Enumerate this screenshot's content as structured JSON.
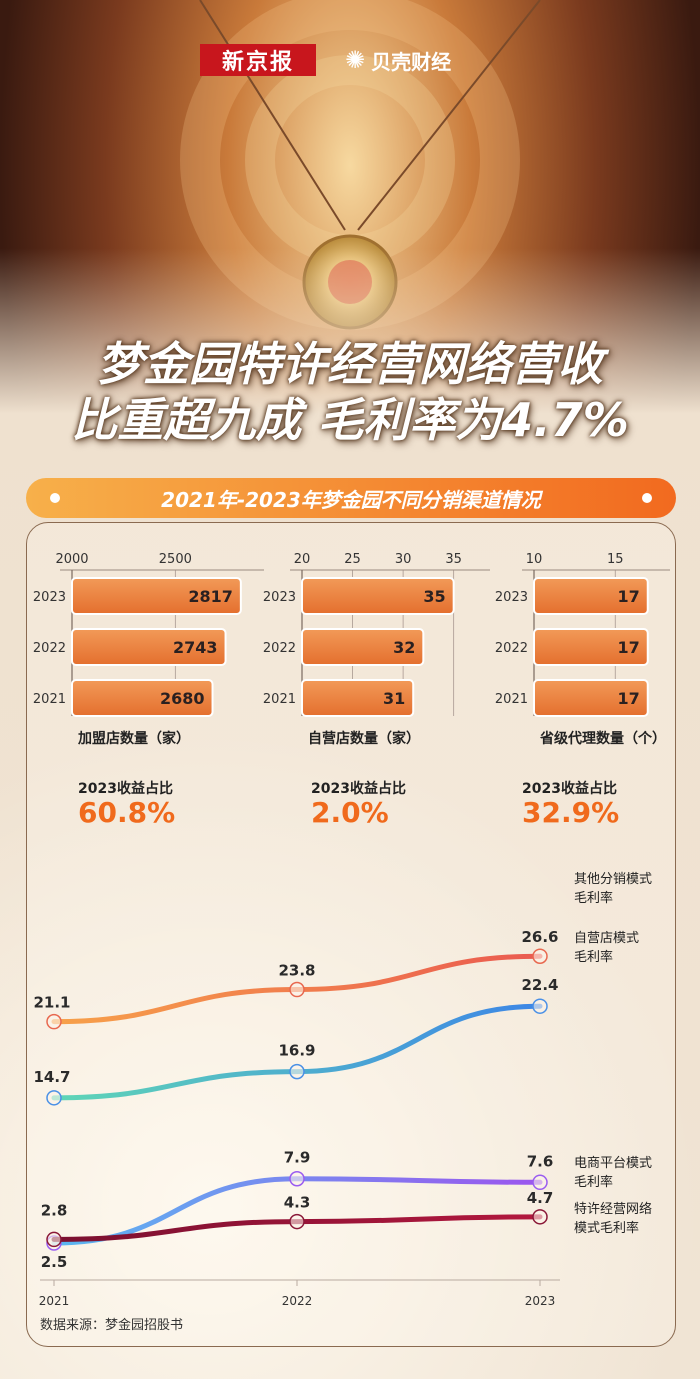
{
  "header": {
    "logo_newspaper": "新京报",
    "logo_site": "贝壳财经",
    "logo_site_icon": "shell-icon"
  },
  "title": {
    "line1": "梦金园特许经营网络营收",
    "line2": "比重超九成 毛利率为4.7%"
  },
  "section_title": "2021年-2023年梦金园不同分销渠道情况",
  "revenue_share": [
    {
      "label": "2023收益占比",
      "value": "60.8%"
    },
    {
      "label": "2023收益占比",
      "value": "2.0%"
    },
    {
      "label": "2023收益占比",
      "value": "32.9%"
    }
  ],
  "chart_data": [
    {
      "type": "bar",
      "orientation": "horizontal",
      "title": "加盟店数量（家）",
      "categories": [
        "2023",
        "2022",
        "2021"
      ],
      "values": [
        2817,
        2743,
        2680
      ],
      "xlim": [
        2000,
        2900
      ],
      "ticks": [
        2000,
        2500
      ]
    },
    {
      "type": "bar",
      "orientation": "horizontal",
      "title": "自营店数量（家）",
      "categories": [
        "2023",
        "2022",
        "2021"
      ],
      "values": [
        35,
        32,
        31
      ],
      "xlim": [
        20,
        38
      ],
      "ticks": [
        20,
        25,
        30,
        35
      ]
    },
    {
      "type": "bar",
      "orientation": "horizontal",
      "title": "省级代理数量（个）",
      "categories": [
        "2023",
        "2022",
        "2021"
      ],
      "values": [
        17,
        17,
        17
      ],
      "xlim": [
        10,
        18
      ],
      "ticks": [
        10,
        15
      ]
    },
    {
      "type": "line",
      "x": [
        "2021",
        "2022",
        "2023"
      ],
      "series": [
        {
          "name": "其他分销模式毛利率",
          "values": [
            21.1,
            23.8,
            26.6
          ],
          "colors": [
            "#f7a14a",
            "#ea5a50"
          ],
          "marker": "#e8684f"
        },
        {
          "name": "自营店模式毛利率",
          "values": [
            14.7,
            16.9,
            22.4
          ],
          "colors": [
            "#5fd6b6",
            "#3d86e6"
          ],
          "marker": "#4a90e6"
        },
        {
          "name": "电商平台模式毛利率",
          "values": [
            2.5,
            7.9,
            7.6
          ],
          "colors": [
            "#5ab8f0",
            "#9b55ee"
          ],
          "marker": "#9a5cf0"
        },
        {
          "name": "特许经营网络模式毛利率",
          "values": [
            2.8,
            4.3,
            4.7
          ],
          "colors": [
            "#7a1030",
            "#b3183e"
          ],
          "marker": "#8a1838"
        }
      ],
      "legend_labels": [
        [
          "其他分销模式",
          "毛利率"
        ],
        [
          "自营店模式",
          "毛利率"
        ],
        [
          "电商平台模式",
          "毛利率"
        ],
        [
          "特许经营网络",
          "模式毛利率"
        ]
      ]
    }
  ],
  "source": "数据来源：梦金园招股书"
}
